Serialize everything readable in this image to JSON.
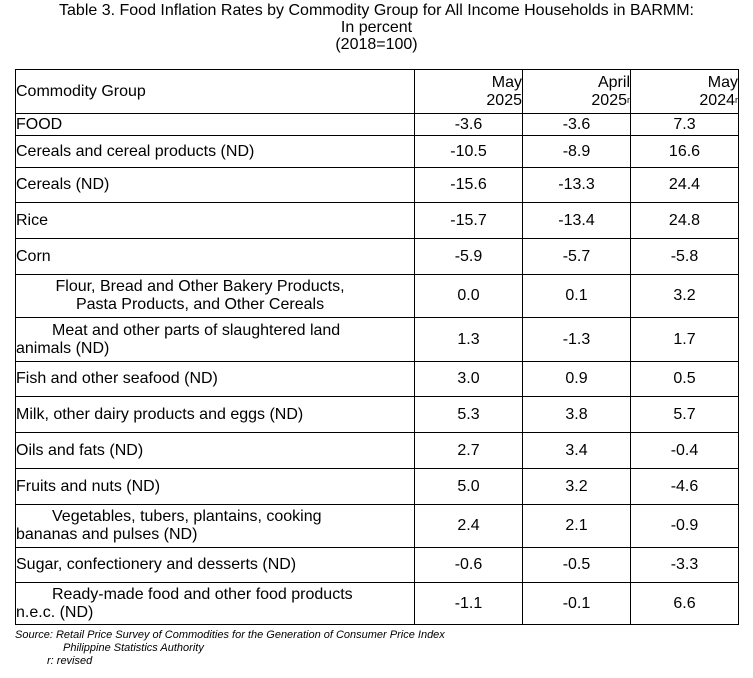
{
  "title": {
    "line1": "Table 3. Food Inflation Rates by Commodity Group for All Income Households in BARMM:",
    "line2": "In percent",
    "line3": "(2018=100)"
  },
  "table": {
    "header": {
      "label": "Commodity Group",
      "col1": {
        "month": "May",
        "year": "2025",
        "mark": ""
      },
      "col2": {
        "month": "April",
        "year": "2025",
        "mark": "r"
      },
      "col3": {
        "month": "May",
        "year": "2024",
        "mark": "r"
      }
    },
    "rows": [
      {
        "label": "FOOD",
        "v1": "-3.6",
        "v2": "-3.6",
        "v3": "7.3"
      },
      {
        "label": "Cereals and cereal products (ND)",
        "v1": "-10.5",
        "v2": "-8.9",
        "v3": "16.6"
      },
      {
        "label": "Cereals (ND)",
        "v1": "-15.6",
        "v2": "-13.3",
        "v3": "24.4"
      },
      {
        "label": "Rice",
        "v1": "-15.7",
        "v2": "-13.4",
        "v3": "24.8"
      },
      {
        "label": "Corn",
        "v1": "-5.9",
        "v2": "-5.7",
        "v3": "-5.8"
      },
      {
        "label_line1": "Flour, Bread and Other Bakery Products,",
        "label_line2": "Pasta Products, and Other Cereals",
        "v1": "0.0",
        "v2": "0.1",
        "v3": "3.2"
      },
      {
        "label_line1": "Meat and other parts of slaughtered land",
        "label_line2": "animals (ND)",
        "v1": "1.3",
        "v2": "-1.3",
        "v3": "1.7"
      },
      {
        "label": "Fish and other seafood (ND)",
        "v1": "3.0",
        "v2": "0.9",
        "v3": "0.5"
      },
      {
        "label": "Milk, other dairy products and eggs (ND)",
        "v1": "5.3",
        "v2": "3.8",
        "v3": "5.7"
      },
      {
        "label": "Oils and fats (ND)",
        "v1": "2.7",
        "v2": "3.4",
        "v3": "-0.4"
      },
      {
        "label": "Fruits and nuts (ND)",
        "v1": "5.0",
        "v2": "3.2",
        "v3": "-4.6"
      },
      {
        "label_line1": "Vegetables, tubers, plantains, cooking",
        "label_line2": "bananas and pulses (ND)",
        "v1": "2.4",
        "v2": "2.1",
        "v3": "-0.9"
      },
      {
        "label": "Sugar, confectionery and desserts (ND)",
        "v1": "-0.6",
        "v2": "-0.5",
        "v3": "-3.3"
      },
      {
        "label_line1": "Ready-made food and other food products",
        "label_line2": "n.e.c. (ND)",
        "v1": "-1.1",
        "v2": "-0.1",
        "v3": "6.6"
      }
    ]
  },
  "source": {
    "line1": "Source: Retail Price Survey of Commodities for the Generation of Consumer Price Index",
    "line2": "Philippine Statistics Authority",
    "line3": "r: revised"
  }
}
